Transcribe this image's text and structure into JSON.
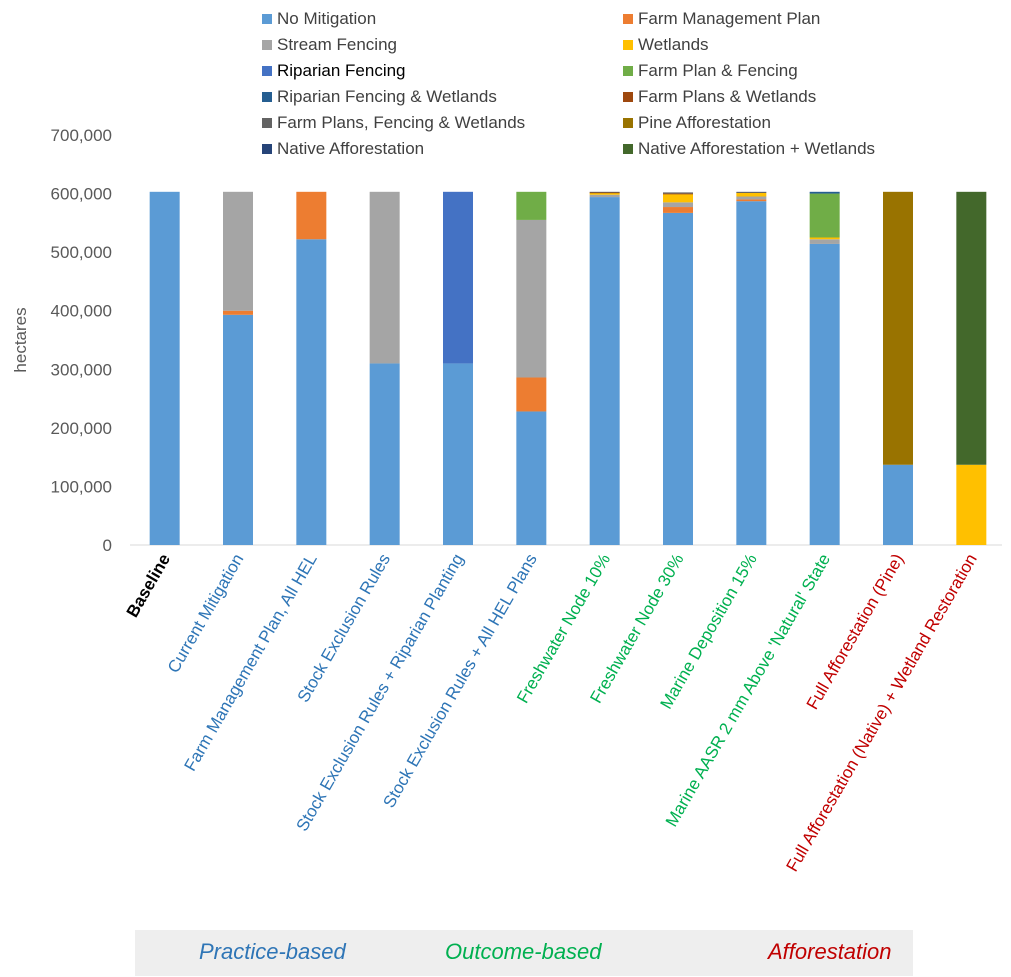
{
  "chart_data": {
    "type": "bar",
    "stacked": true,
    "ylabel": "hectares",
    "xlabel": "",
    "ylim": [
      0,
      700000
    ],
    "yticks": [
      0,
      100000,
      200000,
      300000,
      400000,
      500000,
      600000,
      700000
    ],
    "ytick_labels": [
      "0",
      "100,000",
      "200,000",
      "300,000",
      "400,000",
      "500,000",
      "600,000",
      "700,000"
    ],
    "grid": false,
    "legend_position": "top",
    "categories": [
      {
        "label": "Baseline",
        "group": "baseline"
      },
      {
        "label": "Current Mitigation",
        "group": "practice"
      },
      {
        "label": "Farm Management Plan, All HEL",
        "group": "practice"
      },
      {
        "label": "Stock Exclusion Rules",
        "group": "practice"
      },
      {
        "label": "Stock Exclusion Rules + Riparian Planting",
        "group": "practice"
      },
      {
        "label": "Stock Exclusion Rules + All HEL Plans",
        "group": "practice"
      },
      {
        "label": "Freshwater Node 10%",
        "group": "outcome"
      },
      {
        "label": "Freshwater Node 30%",
        "group": "outcome"
      },
      {
        "label": "Marine Deposition 15%",
        "group": "outcome"
      },
      {
        "label": "Marine AASR 2 mm Above 'Natural' State",
        "group": "outcome"
      },
      {
        "label": "Full Afforestation (Pine)",
        "group": "afforestation"
      },
      {
        "label": "Full Afforestation (Native) + Wetland Restoration",
        "group": "afforestation"
      }
    ],
    "group_colors": {
      "baseline": "#000000",
      "practice": "#2E75B6",
      "outcome": "#00B050",
      "afforestation": "#C00000"
    },
    "series": [
      {
        "name": "No Mitigation",
        "color": "#5B9BD5",
        "values": [
          603000,
          393000,
          522000,
          310000,
          310000,
          228000,
          594000,
          567000,
          587000,
          514000,
          137000,
          0
        ]
      },
      {
        "name": "Farm Management Plan",
        "color": "#ED7D31",
        "values": [
          0,
          7000,
          81000,
          0,
          0,
          58000,
          0,
          10000,
          3000,
          0,
          0,
          0
        ]
      },
      {
        "name": "Stream Fencing",
        "color": "#A5A5A5",
        "values": [
          0,
          203000,
          0,
          293000,
          0,
          269000,
          4000,
          8000,
          5000,
          8000,
          0,
          0
        ]
      },
      {
        "name": "Wetlands",
        "color": "#FFC000",
        "values": [
          0,
          0,
          0,
          0,
          0,
          0,
          3000,
          14000,
          6000,
          3000,
          0,
          137000
        ]
      },
      {
        "name": "Riparian Fencing",
        "color": "#4472C4",
        "values": [
          0,
          0,
          0,
          0,
          293000,
          0,
          0,
          0,
          0,
          0,
          0,
          0
        ]
      },
      {
        "name": "Farm Plan & Fencing",
        "color": "#70AD47",
        "values": [
          0,
          0,
          0,
          0,
          0,
          48000,
          0,
          0,
          0,
          75000,
          0,
          0
        ]
      },
      {
        "name": "Riparian Fencing & Wetlands",
        "color": "#255E91",
        "values": [
          0,
          0,
          0,
          0,
          0,
          0,
          0,
          0,
          0,
          3000,
          0,
          0
        ]
      },
      {
        "name": "Farm Plans & Wetlands",
        "color": "#9E480E",
        "values": [
          0,
          0,
          0,
          0,
          0,
          0,
          1000,
          1000,
          0,
          0,
          0,
          0
        ]
      },
      {
        "name": "Farm Plans, Fencing & Wetlands",
        "color": "#636363",
        "values": [
          0,
          0,
          0,
          0,
          0,
          0,
          1000,
          2000,
          2000,
          0,
          0,
          0
        ]
      },
      {
        "name": "Pine Afforestation",
        "color": "#997300",
        "values": [
          0,
          0,
          0,
          0,
          0,
          0,
          0,
          0,
          0,
          0,
          466000,
          0
        ]
      },
      {
        "name": "Native Afforestation",
        "color": "#264478",
        "values": [
          0,
          0,
          0,
          0,
          0,
          0,
          0,
          0,
          0,
          0,
          0,
          0
        ]
      },
      {
        "name": "Native Afforestation + Wetlands",
        "color": "#43682B",
        "values": [
          0,
          0,
          0,
          0,
          0,
          0,
          0,
          0,
          0,
          0,
          0,
          466000
        ]
      }
    ],
    "legend_highlight": "Riparian Fencing"
  },
  "groups_bar": {
    "practice": {
      "label": "Practice-based",
      "color": "#2E75B6"
    },
    "outcome": {
      "label": "Outcome-based",
      "color": "#00B050"
    },
    "afforestation": {
      "label": "Afforestation",
      "color": "#C00000"
    }
  }
}
